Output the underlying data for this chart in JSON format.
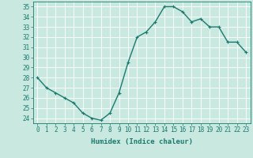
{
  "x": [
    0,
    1,
    2,
    3,
    4,
    5,
    6,
    7,
    8,
    9,
    10,
    11,
    12,
    13,
    14,
    15,
    16,
    17,
    18,
    19,
    20,
    21,
    22,
    23
  ],
  "y": [
    28,
    27,
    26.5,
    26,
    25.5,
    24.5,
    24,
    23.8,
    24.5,
    26.5,
    29.5,
    32,
    32.5,
    33.5,
    35,
    35,
    34.5,
    33.5,
    33.8,
    33,
    33,
    31.5,
    31.5,
    30.5
  ],
  "line_color": "#1a7a6e",
  "marker": "+",
  "marker_size": 3,
  "background_color": "#c8e8e0",
  "grid_color": "#ffffff",
  "xlabel": "Humidex (Indice chaleur)",
  "ylim": [
    23.5,
    35.5
  ],
  "yticks": [
    24,
    25,
    26,
    27,
    28,
    29,
    30,
    31,
    32,
    33,
    34,
    35
  ],
  "xlim": [
    -0.5,
    23.5
  ],
  "xticks": [
    0,
    1,
    2,
    3,
    4,
    5,
    6,
    7,
    8,
    9,
    10,
    11,
    12,
    13,
    14,
    15,
    16,
    17,
    18,
    19,
    20,
    21,
    22,
    23
  ],
  "tick_color": "#1a7a6e",
  "label_color": "#1a7a6e",
  "xlabel_fontsize": 6.5,
  "tick_fontsize": 5.5,
  "linewidth": 1.0,
  "spine_color": "#1a7a6e"
}
